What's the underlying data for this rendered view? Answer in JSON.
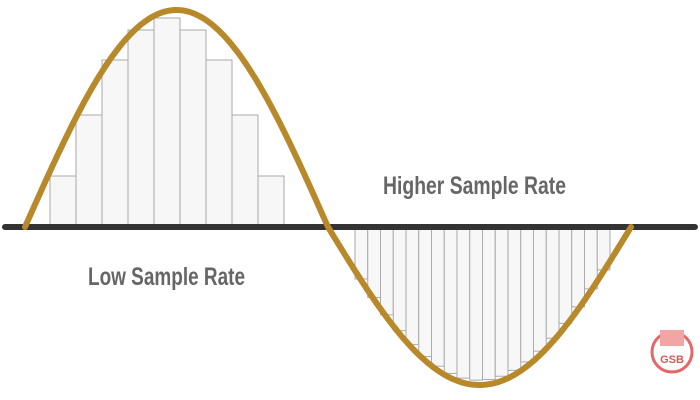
{
  "labels": {
    "high": "Higher Sample Rate",
    "low": "Low Sample Rate"
  },
  "watermark": {
    "logo": "GSB"
  }
}
